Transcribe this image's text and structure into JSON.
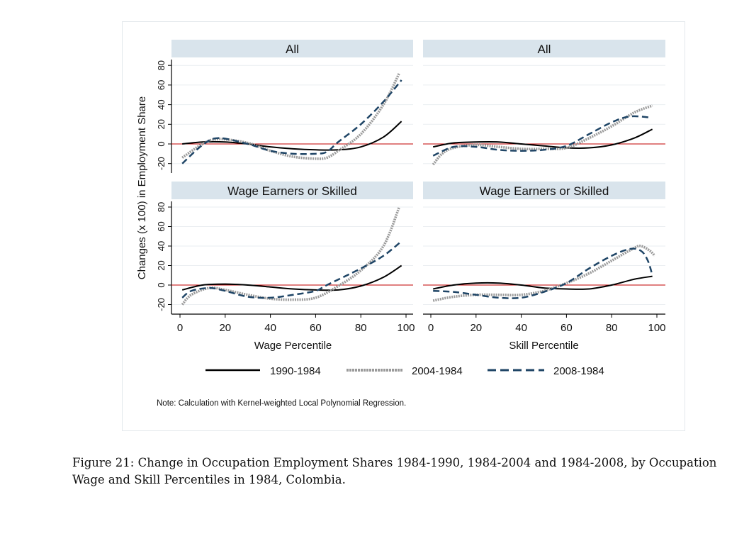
{
  "chart_data": {
    "type": "line",
    "ylabel": "Changes (x 100) in Employment Share",
    "ylim": [
      -28,
      88
    ],
    "yticks": [
      -20,
      0,
      20,
      40,
      60,
      80
    ],
    "xlim": [
      -4,
      104
    ],
    "xticks": [
      0,
      20,
      40,
      60,
      80,
      100
    ],
    "xticks_labels": [
      "0",
      "20",
      "40",
      "60",
      "80",
      "100"
    ],
    "yticks_labels": [
      "-20",
      "0",
      "20",
      "40",
      "60",
      "80"
    ],
    "reference_line": 0,
    "legend": {
      "placement": "bottom",
      "entries": [
        "1990-1984",
        "2004-1984",
        "2008-1984"
      ]
    },
    "note": "Note: Calculation with Kernel-weighted Local Polynomial Regression.",
    "colors": {
      "s1990": "#000000",
      "s2004": "#9a9a9a",
      "s2008": "#1f4566",
      "ref": "#c00000",
      "header": "#d9e4ec"
    },
    "panels": [
      {
        "title": "All",
        "xlabel": "Wage Percentile",
        "series": [
          {
            "name": "1990-1984",
            "x": [
              1,
              10,
              20,
              30,
              40,
              50,
              60,
              70,
              80,
              90,
              98
            ],
            "y": [
              0,
              2,
              2,
              0,
              -3,
              -5,
              -6,
              -6,
              -3,
              7,
              23
            ]
          },
          {
            "name": "2004-1984",
            "x": [
              1,
              10,
              17,
              30,
              40,
              50,
              60,
              65,
              70,
              80,
              90,
              97
            ],
            "y": [
              -14,
              0,
              5,
              1,
              -7,
              -13,
              -15,
              -14,
              -7,
              10,
              40,
              72
            ]
          },
          {
            "name": "2008-1984",
            "x": [
              1,
              10,
              17,
              30,
              40,
              50,
              60,
              65,
              70,
              80,
              90,
              98
            ],
            "y": [
              -20,
              -1,
              6,
              0,
              -7,
              -10,
              -10,
              -8,
              2,
              20,
              43,
              65
            ]
          }
        ]
      },
      {
        "title": "All",
        "xlabel": "Skill Percentile",
        "series": [
          {
            "name": "1990-1984",
            "x": [
              1,
              10,
              20,
              30,
              40,
              50,
              60,
              70,
              80,
              90,
              98
            ],
            "y": [
              -3,
              1,
              2,
              2,
              0,
              -2,
              -4,
              -4,
              -1,
              6,
              15
            ]
          },
          {
            "name": "2004-1984",
            "x": [
              1,
              5,
              10,
              20,
              30,
              40,
              50,
              60,
              70,
              80,
              90,
              98
            ],
            "y": [
              -21,
              -10,
              -4,
              -1,
              -3,
              -5,
              -5,
              -4,
              6,
              18,
              32,
              39
            ]
          },
          {
            "name": "2008-1984",
            "x": [
              1,
              10,
              20,
              30,
              40,
              50,
              60,
              70,
              80,
              88,
              97
            ],
            "y": [
              -12,
              -3,
              -3,
              -6,
              -7,
              -6,
              -2,
              10,
              22,
              28,
              27
            ]
          }
        ]
      },
      {
        "title": "Wage Earners or Skilled",
        "xlabel": "Wage Percentile",
        "series": [
          {
            "name": "1990-1984",
            "x": [
              1,
              10,
              20,
              30,
              40,
              50,
              60,
              70,
              80,
              90,
              98
            ],
            "y": [
              -5,
              0,
              1,
              0,
              -2,
              -4,
              -5,
              -5,
              -1,
              8,
              20
            ]
          },
          {
            "name": "2004-1984",
            "x": [
              1,
              5,
              13,
              20,
              30,
              40,
              50,
              60,
              70,
              80,
              90,
              97
            ],
            "y": [
              -20,
              -10,
              -3,
              -5,
              -10,
              -14,
              -15,
              -13,
              -1,
              15,
              40,
              80
            ]
          },
          {
            "name": "2008-1984",
            "x": [
              1,
              5,
              13,
              20,
              30,
              40,
              50,
              60,
              65,
              80,
              90,
              98
            ],
            "y": [
              -13,
              -6,
              -3,
              -6,
              -12,
              -13,
              -10,
              -6,
              0,
              17,
              30,
              45
            ]
          }
        ]
      },
      {
        "title": "Wage Earners or Skilled",
        "xlabel": "Skill Percentile",
        "series": [
          {
            "name": "1990-1984",
            "x": [
              1,
              10,
              20,
              30,
              40,
              50,
              60,
              70,
              80,
              90,
              98
            ],
            "y": [
              -4,
              0,
              2,
              2,
              0,
              -3,
              -4,
              -4,
              0,
              6,
              9
            ]
          },
          {
            "name": "2004-1984",
            "x": [
              1,
              10,
              20,
              30,
              40,
              50,
              60,
              70,
              80,
              90,
              93,
              97,
              99
            ],
            "y": [
              -16,
              -12,
              -10,
              -10,
              -10,
              -6,
              2,
              12,
              25,
              38,
              40,
              35,
              30
            ]
          },
          {
            "name": "2008-1984",
            "x": [
              1,
              10,
              20,
              30,
              40,
              50,
              60,
              70,
              80,
              88,
              93,
              96,
              98
            ],
            "y": [
              -6,
              -7,
              -10,
              -13,
              -13,
              -7,
              2,
              17,
              30,
              37,
              35,
              25,
              10
            ]
          }
        ]
      }
    ]
  },
  "caption": "Figure 21: Change in Occupation Employment Shares 1984-1990, 1984-2004 and 1984-2008, by Occupation Wage and Skill Percentiles in 1984, Colombia."
}
